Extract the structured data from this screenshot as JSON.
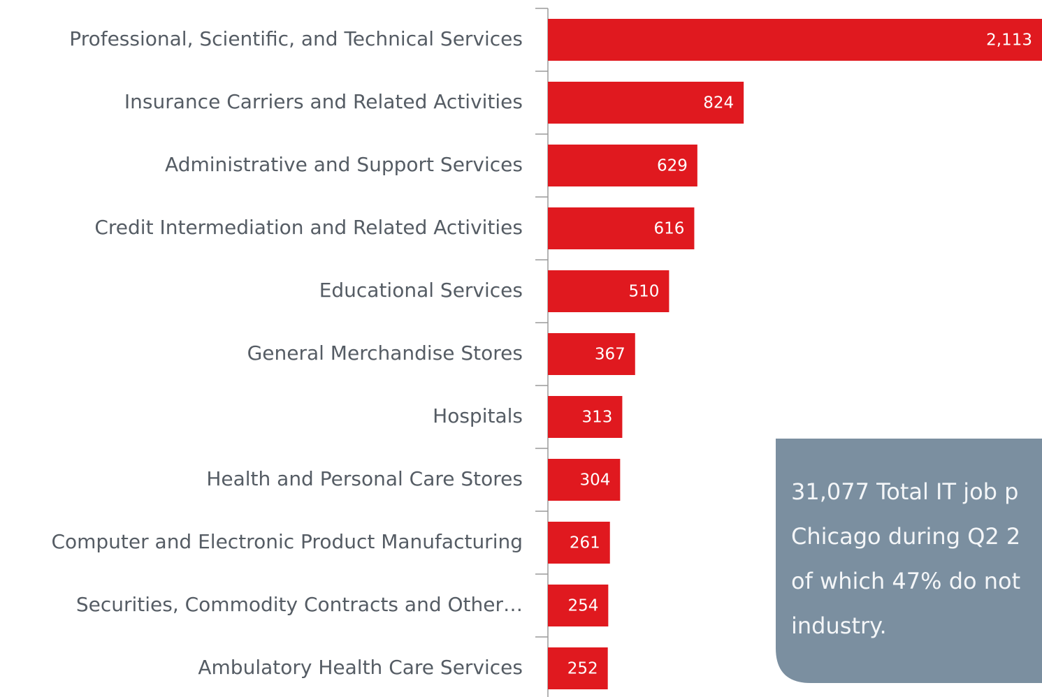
{
  "chart_data": {
    "type": "bar",
    "orientation": "horizontal",
    "categories": [
      "Professional, Scientific, and Technical Services",
      "Insurance Carriers and Related Activities",
      "Administrative and Support Services",
      "Credit Intermediation and Related Activities",
      "Educational Services",
      "General Merchandise Stores",
      "Hospitals",
      "Health and Personal Care Stores",
      "Computer and Electronic Product Manufacturing",
      "Securities, Commodity Contracts and Other…",
      "Ambulatory Health Care Services"
    ],
    "values": [
      2113,
      824,
      629,
      616,
      510,
      367,
      313,
      304,
      261,
      254,
      252
    ],
    "value_labels": [
      "2,113",
      "824",
      "629",
      "616",
      "510",
      "367",
      "313",
      "304",
      "261",
      "254",
      "252"
    ],
    "color": "#e0191f",
    "annotation": [
      "31,077 Total IT job p",
      "Chicago during Q2 2",
      "of which 47% do not",
      "industry."
    ]
  }
}
